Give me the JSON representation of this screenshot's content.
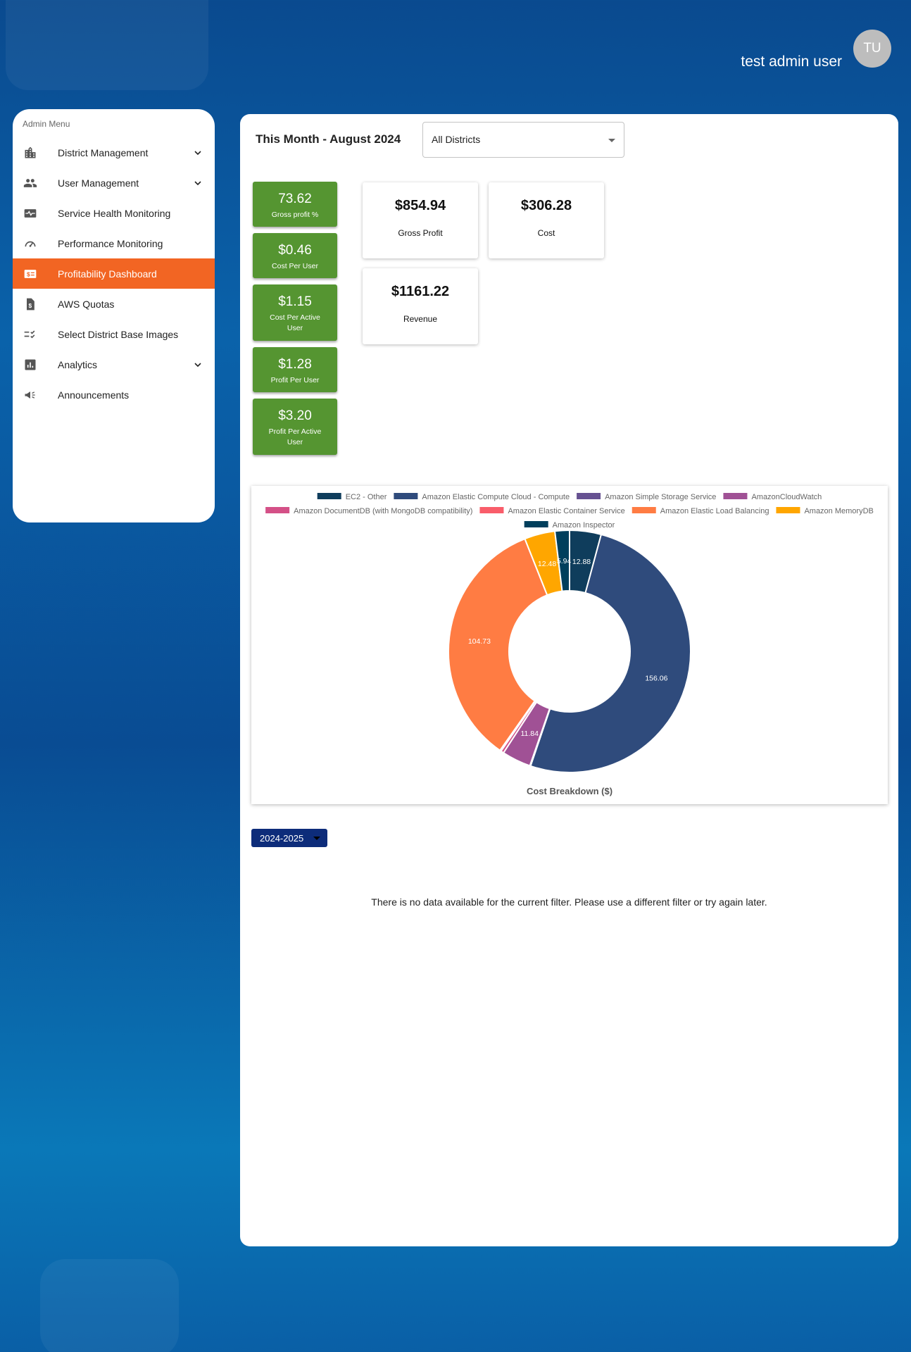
{
  "user": {
    "name": "test admin user",
    "initials": "TU"
  },
  "sidebar": {
    "title": "Admin Menu",
    "items": [
      {
        "label": "District Management",
        "icon": "building-icon",
        "expandable": true,
        "active": false
      },
      {
        "label": "User Management",
        "icon": "people-icon",
        "expandable": true,
        "active": false
      },
      {
        "label": "Service Health Monitoring",
        "icon": "monitor-heart-icon",
        "expandable": false,
        "active": false
      },
      {
        "label": "Performance Monitoring",
        "icon": "speedometer-icon",
        "expandable": false,
        "active": false
      },
      {
        "label": "Profitability Dashboard",
        "icon": "dollar-icon",
        "expandable": false,
        "active": true
      },
      {
        "label": "AWS Quotas",
        "icon": "dollar-document-icon",
        "expandable": false,
        "active": false
      },
      {
        "label": "Select District Base Images",
        "icon": "checklist-icon",
        "expandable": false,
        "active": false
      },
      {
        "label": "Analytics",
        "icon": "bar-chart-icon",
        "expandable": true,
        "active": false
      },
      {
        "label": "Announcements",
        "icon": "megaphone-icon",
        "expandable": false,
        "active": false
      }
    ]
  },
  "header": {
    "period": "This Month - August 2024",
    "district_select": "All Districts"
  },
  "kpis": [
    {
      "value": "73.62",
      "label": "Gross profit %"
    },
    {
      "value": "$0.46",
      "label": "Cost Per User"
    },
    {
      "value": "$1.15",
      "label": "Cost Per Active User"
    },
    {
      "value": "$1.28",
      "label": "Profit Per User"
    },
    {
      "value": "$3.20",
      "label": "Profit Per Active User"
    }
  ],
  "cards": {
    "gross_profit": {
      "value": "$854.94",
      "label": "Gross Profit"
    },
    "cost": {
      "value": "$306.28",
      "label": "Cost"
    },
    "revenue": {
      "value": "$1161.22",
      "label": "Revenue"
    }
  },
  "chart_data": {
    "type": "pie",
    "title": "Cost Breakdown ($)",
    "series": [
      {
        "name": "EC2 - Other",
        "value": 12.88,
        "color": "#0f3d5c",
        "label": "12.88"
      },
      {
        "name": "Amazon Elastic Compute Cloud - Compute",
        "value": 156.06,
        "color": "#2f4b7c",
        "label": "156.06"
      },
      {
        "name": "Amazon Simple Storage Service",
        "value": 0.3,
        "color": "#665191",
        "label": ""
      },
      {
        "name": "AmazonCloudWatch",
        "value": 11.84,
        "color": "#a05195",
        "label": "11.84"
      },
      {
        "name": "Amazon DocumentDB (with MongoDB compatibility)",
        "value": 1.2,
        "color": "#d45087",
        "label": ""
      },
      {
        "name": "Amazon Elastic Container Service",
        "value": 0.5,
        "color": "#f95d6a",
        "label": ""
      },
      {
        "name": "Amazon Elastic Load Balancing",
        "value": 104.73,
        "color": "#ff7c43",
        "label": "104.73"
      },
      {
        "name": "Amazon MemoryDB",
        "value": 12.48,
        "color": "#ffa600",
        "label": "12.48"
      },
      {
        "name": "Amazon Inspector",
        "value": 5.94,
        "color": "#003f5c",
        "label": "5.94"
      }
    ]
  },
  "year_select": "2024-2025",
  "no_data_message": "There is no data available for the current filter. Please use a different filter or try again later."
}
